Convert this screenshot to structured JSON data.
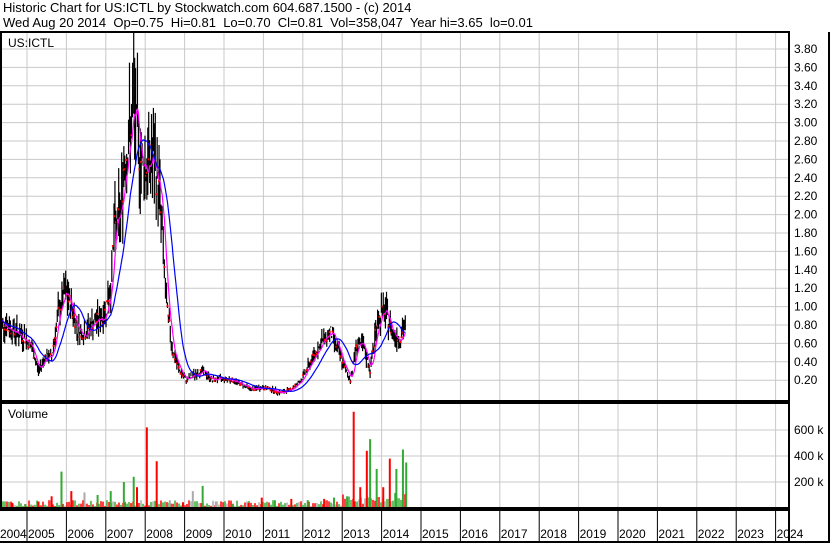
{
  "header": {
    "title": "Historic Chart for US:ICTL by Stockwatch.com 604.687.1500 - (c) 2014",
    "quote": "Wed Aug 20 2014  Op=0.75  Hi=0.81  Lo=0.70  Cl=0.81  Vol=358,047  Year hi=3.65  lo=0.01"
  },
  "chart_data": [
    {
      "type": "line",
      "title": "US:ICTL",
      "ylim": [
        0,
        3.9
      ],
      "y_ticks": [
        "3.80",
        "3.60",
        "3.40",
        "3.20",
        "3.00",
        "2.80",
        "2.60",
        "2.40",
        "2.20",
        "2.00",
        "1.80",
        "1.60",
        "1.40",
        "1.20",
        "1.00",
        "0.80",
        "0.60",
        "0.40",
        "0.20"
      ],
      "x_ticks": [
        "2004",
        "2005",
        "2006",
        "2007",
        "2008",
        "2009",
        "2010",
        "2011",
        "2012",
        "2013",
        "2014",
        "2015",
        "2016",
        "2017",
        "2018",
        "2019",
        "2020",
        "2021",
        "2022",
        "2023",
        "2024"
      ],
      "grid": true,
      "colors": {
        "bars": "#000000",
        "close": "#ff0000",
        "ma_short": "#ff00ff",
        "ma_long": "#0000ff"
      },
      "series": [
        {
          "points": [
            [
              "2004-04",
              0.85
            ],
            [
              "2004-06",
              0.8
            ],
            [
              "2004-08",
              0.75
            ],
            [
              "2004-10",
              0.7
            ],
            [
              "2004-12",
              0.65
            ],
            [
              "2005-02",
              0.55
            ],
            [
              "2005-04",
              0.3
            ],
            [
              "2005-06",
              0.45
            ],
            [
              "2005-08",
              0.45
            ],
            [
              "2005-10",
              0.9
            ],
            [
              "2005-12",
              1.15
            ],
            [
              "2006-02",
              1.0
            ],
            [
              "2006-04",
              0.75
            ],
            [
              "2006-06",
              0.7
            ],
            [
              "2006-08",
              0.8
            ],
            [
              "2006-10",
              0.85
            ],
            [
              "2006-12",
              0.9
            ],
            [
              "2007-02",
              1.2
            ],
            [
              "2007-03",
              1.8
            ],
            [
              "2007-05",
              2.0
            ],
            [
              "2007-06",
              2.5
            ],
            [
              "2007-08",
              2.9
            ],
            [
              "2007-09",
              3.2
            ],
            [
              "2007-11",
              2.6
            ],
            [
              "2008-01",
              2.5
            ],
            [
              "2008-03",
              2.6
            ],
            [
              "2008-05",
              2.2
            ],
            [
              "2008-06",
              1.6
            ],
            [
              "2008-07",
              1.0
            ],
            [
              "2008-09",
              0.5
            ],
            [
              "2008-11",
              0.3
            ],
            [
              "2009-01",
              0.2
            ],
            [
              "2009-03",
              0.25
            ],
            [
              "2009-06",
              0.3
            ],
            [
              "2009-09",
              0.2
            ],
            [
              "2009-12",
              0.22
            ],
            [
              "2010-03",
              0.2
            ],
            [
              "2010-06",
              0.15
            ],
            [
              "2010-09",
              0.1
            ],
            [
              "2010-12",
              0.12
            ],
            [
              "2011-03",
              0.1
            ],
            [
              "2011-06",
              0.06
            ],
            [
              "2011-09",
              0.1
            ],
            [
              "2011-12",
              0.2
            ],
            [
              "2012-03",
              0.4
            ],
            [
              "2012-06",
              0.6
            ],
            [
              "2012-09",
              0.72
            ],
            [
              "2012-11",
              0.55
            ],
            [
              "2013-01",
              0.35
            ],
            [
              "2013-03",
              0.2
            ],
            [
              "2013-05",
              0.6
            ],
            [
              "2013-07",
              0.55
            ],
            [
              "2013-09",
              0.3
            ],
            [
              "2013-11",
              0.8
            ],
            [
              "2014-01",
              0.95
            ],
            [
              "2014-02",
              0.9
            ],
            [
              "2014-04",
              0.7
            ],
            [
              "2014-06",
              0.65
            ],
            [
              "2014-08",
              0.81
            ]
          ]
        }
      ]
    },
    {
      "type": "bar",
      "title": "Volume",
      "ylim": [
        0,
        800
      ],
      "y_ticks": [
        "600 k",
        "400 k",
        "200 k"
      ],
      "colors": {
        "up": "#33aa33",
        "down": "#ff0000",
        "flat": "#aaaaaa"
      },
      "series": [
        {
          "points": [
            [
              "2004-04",
              60,
              "up"
            ],
            [
              "2004-08",
              40,
              "down"
            ],
            [
              "2004-12",
              30,
              "up"
            ],
            [
              "2005-04",
              50,
              "down"
            ],
            [
              "2005-08",
              90,
              "down"
            ],
            [
              "2005-11",
              280,
              "up"
            ],
            [
              "2006-02",
              130,
              "down"
            ],
            [
              "2006-06",
              120,
              "flat"
            ],
            [
              "2006-10",
              100,
              "up"
            ],
            [
              "2007-02",
              130,
              "up"
            ],
            [
              "2007-06",
              200,
              "up"
            ],
            [
              "2007-09",
              240,
              "up"
            ],
            [
              "2007-10",
              160,
              "down"
            ],
            [
              "2008-01",
              620,
              "down"
            ],
            [
              "2008-04",
              360,
              "down"
            ],
            [
              "2008-08",
              60,
              "flat"
            ],
            [
              "2008-12",
              40,
              "down"
            ],
            [
              "2009-03",
              130,
              "flat"
            ],
            [
              "2009-06",
              170,
              "up"
            ],
            [
              "2009-10",
              50,
              "flat"
            ],
            [
              "2010-03",
              30,
              "up"
            ],
            [
              "2010-08",
              40,
              "down"
            ],
            [
              "2010-12",
              80,
              "down"
            ],
            [
              "2011-04",
              60,
              "up"
            ],
            [
              "2011-09",
              70,
              "down"
            ],
            [
              "2012-02",
              60,
              "up"
            ],
            [
              "2012-07",
              70,
              "down"
            ],
            [
              "2012-10",
              80,
              "up"
            ],
            [
              "2013-02",
              90,
              "up"
            ],
            [
              "2013-04",
              740,
              "down"
            ],
            [
              "2013-06",
              160,
              "down"
            ],
            [
              "2013-08",
              440,
              "down"
            ],
            [
              "2013-09",
              530,
              "up"
            ],
            [
              "2013-11",
              300,
              "up"
            ],
            [
              "2014-01",
              160,
              "down"
            ],
            [
              "2014-03",
              380,
              "down"
            ],
            [
              "2014-05",
              300,
              "up"
            ],
            [
              "2014-07",
              450,
              "up"
            ],
            [
              "2014-08",
              350,
              "up"
            ]
          ]
        }
      ]
    }
  ]
}
